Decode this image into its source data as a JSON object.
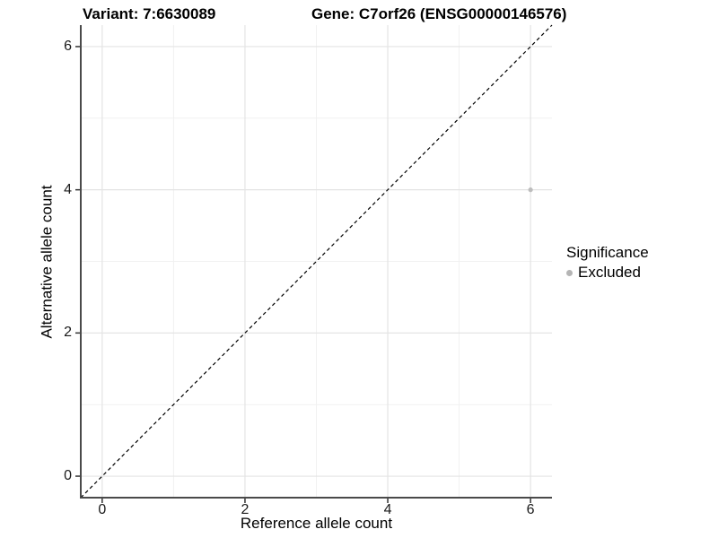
{
  "header": {
    "title_left": "Variant: 7:6630089",
    "title_right": "Gene: C7orf26 (ENSG00000146576)"
  },
  "chart_data": {
    "type": "scatter",
    "title": "Variant: 7:6630089   Gene: C7orf26 (ENSG00000146576)",
    "xlabel": "Reference allele count",
    "ylabel": "Alternative allele count",
    "xlim": [
      -0.3,
      6.3
    ],
    "ylim": [
      -0.3,
      6.3
    ],
    "x_ticks": [
      0,
      2,
      4,
      6
    ],
    "y_ticks": [
      0,
      2,
      4,
      6
    ],
    "x_minor_ticks": [
      1,
      3,
      5
    ],
    "y_minor_ticks": [
      1,
      3,
      5
    ],
    "grid": true,
    "identity_line": {
      "style": "dashed",
      "color": "#000000",
      "from": [
        -0.3,
        -0.3
      ],
      "to": [
        6.3,
        6.3
      ]
    },
    "series": [
      {
        "name": "Excluded",
        "color": "#bdbdbd",
        "points": [
          {
            "x": 6,
            "y": 4
          }
        ]
      }
    ],
    "legend": {
      "position": "right",
      "title": "Significance",
      "entries": [
        {
          "label": "Excluded",
          "color": "#b5b5b5",
          "marker": "circle"
        }
      ]
    },
    "colors": {
      "background": "#ffffff",
      "grid_major": "#e4e4e4",
      "grid_minor": "#f1f1f1",
      "axis_line": "#4a4a4a",
      "tick_mark": "#333333",
      "point": "#bdbdbd",
      "identity_line": "#000000"
    }
  }
}
